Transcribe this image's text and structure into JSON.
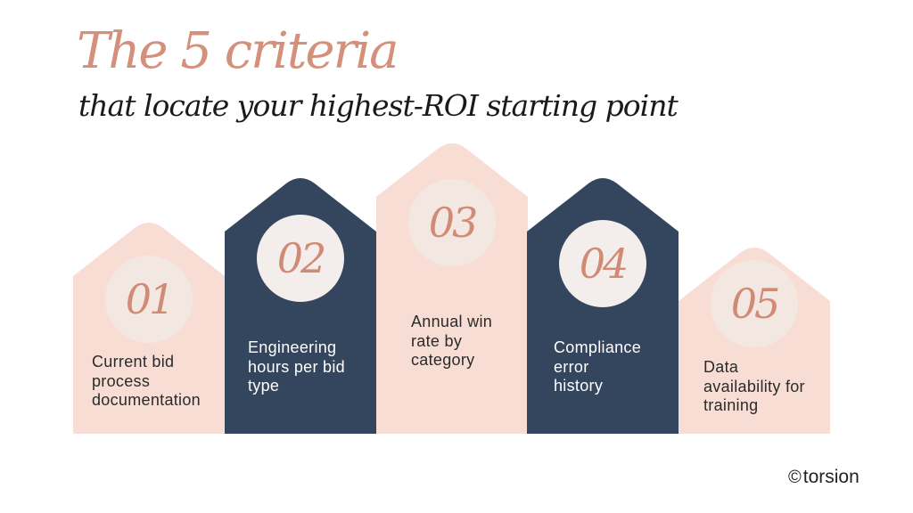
{
  "title": {
    "main": "The 5 criteria",
    "sub": "that locate your highest-ROI starting point"
  },
  "criteria": [
    {
      "number": "01",
      "label_lines": [
        "Current bid",
        "process",
        "documentation"
      ]
    },
    {
      "number": "02",
      "label_lines": [
        "Engineering",
        "hours per bid",
        "type"
      ]
    },
    {
      "number": "03",
      "label_lines": [
        "Annual win",
        "rate by",
        "category"
      ]
    },
    {
      "number": "04",
      "label_lines": [
        "Compliance",
        "error",
        "history"
      ]
    },
    {
      "number": "05",
      "label_lines": [
        "Data",
        "availability for",
        "training"
      ]
    }
  ],
  "brand": {
    "icon": "copyright-icon",
    "name": "torsion"
  },
  "colors": {
    "title_accent": "#D4907A",
    "title_dark": "#1A1A1A",
    "card_light": "#F7DDD3",
    "card_dark": "#34455E",
    "circle_light": "#F3E7E2",
    "circle_dark": "#F3EEEC",
    "number": "#D18A74",
    "label_on_light": "#2B2B2B",
    "label_on_dark": "#FFFFFF"
  }
}
